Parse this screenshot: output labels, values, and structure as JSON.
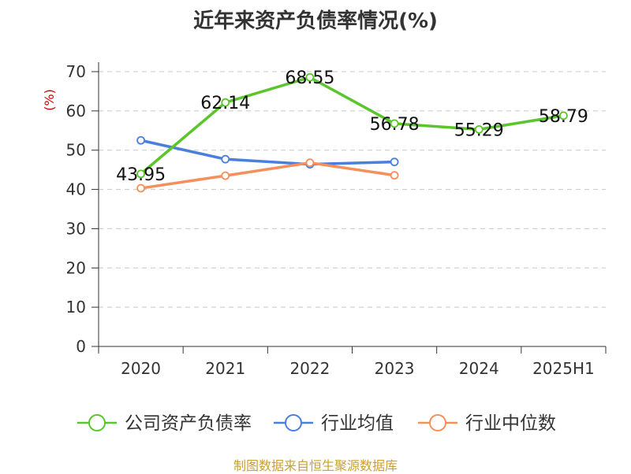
{
  "chart_data": {
    "type": "line",
    "title": "近年来资产负债率情况(%)",
    "ylabel": "(%)",
    "xlabel": "",
    "categories": [
      "2020",
      "2021",
      "2022",
      "2023",
      "2024",
      "2025H1"
    ],
    "ylim": [
      0,
      70
    ],
    "yticks": [
      0,
      10,
      20,
      30,
      40,
      50,
      60,
      70
    ],
    "grid": true,
    "legend_position": "bottom",
    "series": [
      {
        "name": "公司资产负债率",
        "color": "#5ac52c",
        "values": [
          43.95,
          62.14,
          68.55,
          56.78,
          55.29,
          58.79
        ],
        "labels": [
          "43.95",
          "62.14",
          "68.55",
          "56.78",
          "55.29",
          "58.79"
        ]
      },
      {
        "name": "行业均值",
        "color": "#4a7fdc",
        "values": [
          52.5,
          47.7,
          46.4,
          47.0,
          null,
          null
        ]
      },
      {
        "name": "行业中位数",
        "color": "#f58f5b",
        "values": [
          40.3,
          43.5,
          46.8,
          43.6,
          null,
          null
        ]
      }
    ]
  },
  "footer": "制图数据来自恒生聚源数据库"
}
